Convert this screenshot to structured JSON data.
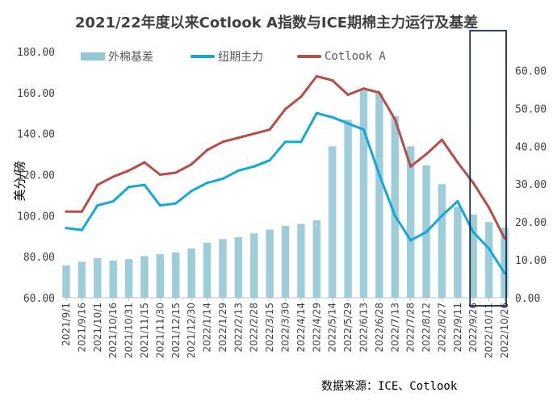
{
  "chart_data": {
    "type": "bar+line",
    "title": "2021/22年度以来Cotlook A指数与ICE期棉主力运行及基差",
    "ylabel": "美分/磅",
    "ylim_left": [
      60,
      180
    ],
    "ylim_right": [
      0,
      65
    ],
    "yticks_left": [
      "60.00",
      "80.00",
      "100.00",
      "120.00",
      "140.00",
      "160.00",
      "180.00"
    ],
    "yticks_right": [
      "0.00",
      "10.00",
      "20.00",
      "30.00",
      "40.00",
      "50.00",
      "60.00"
    ],
    "x_labels": [
      "2021/9/1",
      "2021/9/16",
      "2021/10/1",
      "2021/10/16",
      "2021/10/31",
      "2021/11/15",
      "2021/11/30",
      "2021/12/15",
      "2021/12/30",
      "2022/1/14",
      "2022/1/29",
      "2022/2/13",
      "2022/2/28",
      "2022/3/15",
      "2022/3/30",
      "2022/4/14",
      "2022/4/29",
      "2022/5/14",
      "2022/5/29",
      "2022/6/13",
      "2022/6/28",
      "2022/7/13",
      "2022/7/28",
      "2022/8/12",
      "2022/8/27",
      "2022/9/11",
      "2022/9/26",
      "2022/10/11",
      "2022/10/26"
    ],
    "legend_position": "top",
    "grid": false,
    "highlight_box": "2022/9/26 – 2022/10/26",
    "series": [
      {
        "name": "外棉基差",
        "kind": "bar",
        "axis": "right",
        "color": "#92c8d6",
        "x": [
          "2021/9/1",
          "2021/9/16",
          "2021/10/1",
          "2021/10/16",
          "2021/10/31",
          "2021/11/15",
          "2021/11/30",
          "2021/12/15",
          "2021/12/30",
          "2022/1/14",
          "2022/1/29",
          "2022/2/13",
          "2022/2/28",
          "2022/3/15",
          "2022/3/30",
          "2022/4/14",
          "2022/4/29",
          "2022/5/14",
          "2022/5/29",
          "2022/6/13",
          "2022/6/28",
          "2022/7/13",
          "2022/7/28",
          "2022/8/12",
          "2022/8/27",
          "2022/9/11",
          "2022/9/26",
          "2022/10/11",
          "2022/10/26"
        ],
        "values": [
          8.5,
          9.5,
          10.5,
          9.8,
          10.2,
          11.0,
          11.5,
          12.0,
          13.0,
          14.5,
          15.5,
          16.0,
          17.0,
          18.0,
          19.0,
          19.5,
          20.5,
          40.0,
          47.0,
          55.0,
          54.0,
          48.0,
          40.0,
          35.0,
          30.0,
          24.0,
          22.0,
          20.0,
          18.5
        ]
      },
      {
        "name": "纽期主力",
        "kind": "line",
        "axis": "left",
        "color": "#12a8de",
        "x": [
          "2021/9/1",
          "2021/9/16",
          "2021/10/1",
          "2021/10/16",
          "2021/10/31",
          "2021/11/15",
          "2021/11/30",
          "2021/12/15",
          "2021/12/30",
          "2022/1/14",
          "2022/1/29",
          "2022/2/13",
          "2022/2/28",
          "2022/3/15",
          "2022/3/30",
          "2022/4/14",
          "2022/4/29",
          "2022/5/14",
          "2022/5/29",
          "2022/6/13",
          "2022/6/28",
          "2022/7/13",
          "2022/7/28",
          "2022/8/12",
          "2022/8/27",
          "2022/9/11",
          "2022/9/26",
          "2022/10/11",
          "2022/10/26"
        ],
        "values": [
          94,
          93,
          105,
          107,
          114,
          115,
          105,
          106,
          112,
          116,
          118,
          122,
          124,
          127,
          136,
          136,
          150,
          148,
          145,
          142,
          120,
          100,
          88,
          92,
          100,
          107,
          92,
          84,
          72
        ]
      },
      {
        "name": "Cotlook A",
        "kind": "line",
        "axis": "left",
        "color": "#b84c46",
        "x": [
          "2021/9/1",
          "2021/9/16",
          "2021/10/1",
          "2021/10/16",
          "2021/10/31",
          "2021/11/15",
          "2021/11/30",
          "2021/12/15",
          "2021/12/30",
          "2022/1/14",
          "2022/1/29",
          "2022/2/13",
          "2022/2/28",
          "2022/3/15",
          "2022/3/30",
          "2022/4/14",
          "2022/4/29",
          "2022/5/14",
          "2022/5/29",
          "2022/6/13",
          "2022/6/28",
          "2022/7/13",
          "2022/7/28",
          "2022/8/12",
          "2022/8/27",
          "2022/9/11",
          "2022/9/26",
          "2022/10/11",
          "2022/10/26"
        ],
        "values": [
          102,
          102,
          115,
          119,
          122,
          126,
          120,
          121,
          125,
          132,
          136,
          138,
          140,
          142,
          152,
          158,
          168,
          166,
          159,
          162,
          160,
          147,
          124,
          130,
          137,
          126,
          116,
          104,
          89
        ]
      }
    ],
    "source": "数据来源：ICE、Cotlook"
  }
}
